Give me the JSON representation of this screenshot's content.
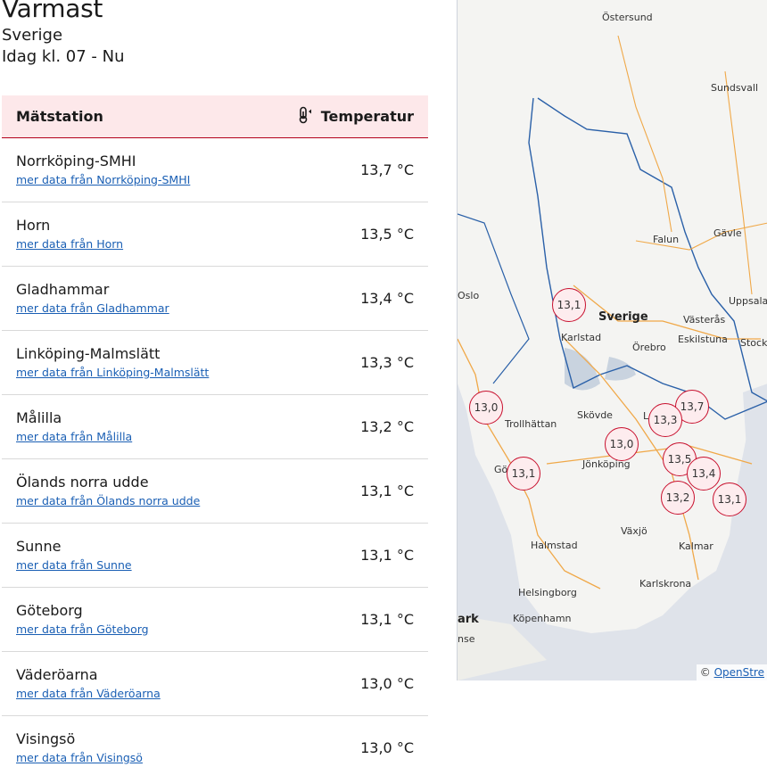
{
  "header": {
    "title": "Varmast",
    "region": "Sverige",
    "period": "Idag kl. 07 - Nu"
  },
  "table": {
    "col_station": "Mätstation",
    "col_temp": "Temperatur",
    "temp_icon": "thermometer-icon",
    "rows": [
      {
        "name": "Norrköping-SMHI",
        "link": "mer data från Norrköping-SMHI",
        "value": "13,7 °C"
      },
      {
        "name": "Horn",
        "link": "mer data från Horn",
        "value": "13,5 °C"
      },
      {
        "name": "Gladhammar",
        "link": "mer data från Gladhammar",
        "value": "13,4 °C"
      },
      {
        "name": "Linköping-Malmslätt",
        "link": "mer data från Linköping-Malmslätt",
        "value": "13,3 °C"
      },
      {
        "name": "Målilla",
        "link": "mer data från Målilla",
        "value": "13,2 °C"
      },
      {
        "name": "Ölands norra udde",
        "link": "mer data från Ölands norra udde",
        "value": "13,1 °C"
      },
      {
        "name": "Sunne",
        "link": "mer data från Sunne",
        "value": "13,1 °C"
      },
      {
        "name": "Göteborg",
        "link": "mer data från Göteborg",
        "value": "13,1 °C"
      },
      {
        "name": "Väderöarna",
        "link": "mer data från Väderöarna",
        "value": "13,0 °C"
      },
      {
        "name": "Visingsö",
        "link": "mer data från Visingsö",
        "value": "13,0 °C"
      }
    ]
  },
  "map": {
    "markers": [
      "13,1",
      "13,7",
      "13,0",
      "13,3",
      "13,0",
      "13,5",
      "13,1",
      "13,4",
      "13,2",
      "13,1"
    ],
    "places": [
      "Östersund",
      "Sundsvall",
      "Falun",
      "Gävle",
      "Oslo",
      "Sverige",
      "Uppsala",
      "Karlstad",
      "Västerås",
      "Eskilstuna",
      "Stockh",
      "Örebro",
      "Skövde",
      "Trollhättan",
      "Jönköping",
      "Gö",
      "Växjö",
      "Halmstad",
      "Kalmar",
      "Karlskrona",
      "Helsingborg",
      "ark",
      "Köpenhamn",
      "nse",
      "L"
    ],
    "attribution_prefix": "© ",
    "attribution_link": "OpenStre"
  }
}
